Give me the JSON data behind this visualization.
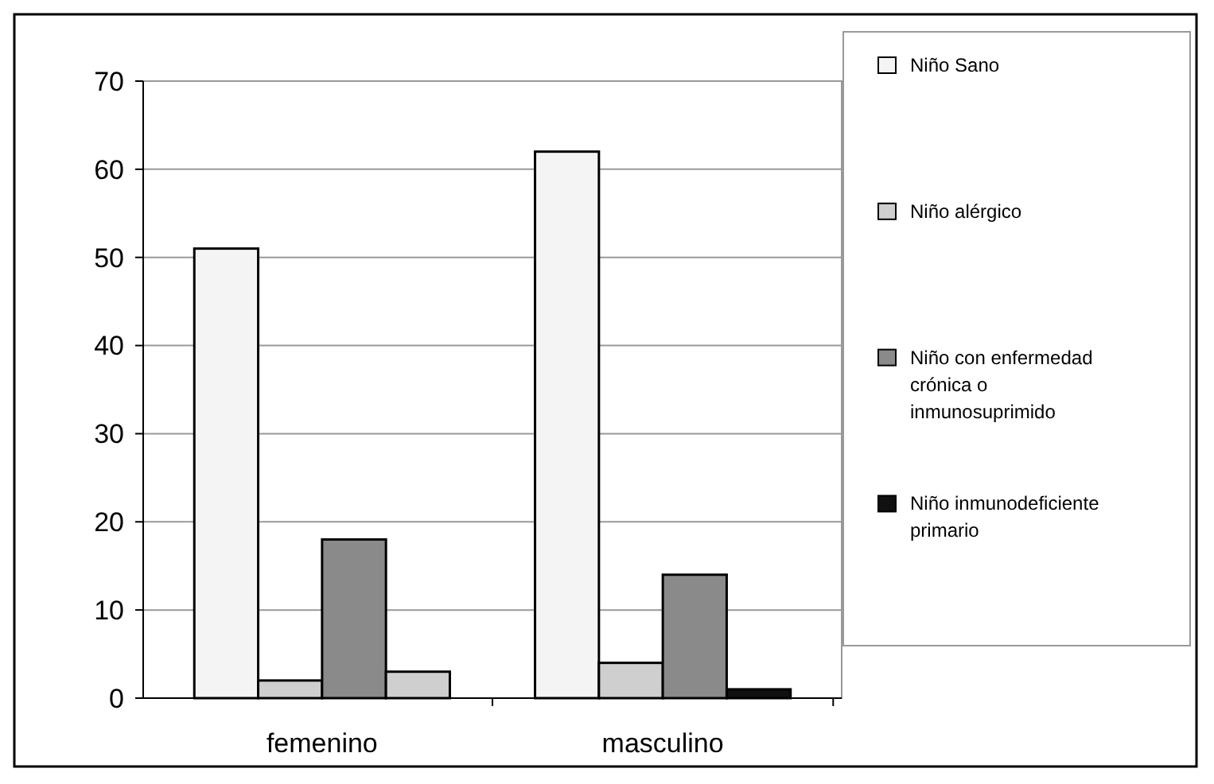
{
  "chart_data": {
    "type": "bar",
    "categories": [
      "femenino",
      "masculino"
    ],
    "series": [
      {
        "name": "Niño Sano",
        "color": "#f4f4f4",
        "values": [
          51,
          62
        ]
      },
      {
        "name": "Niño alérgico",
        "color": "#cfcfcf",
        "values": [
          2,
          4
        ]
      },
      {
        "name": "Niño con enfermedad crónica o inmunosuprimido",
        "color": "#8a8a8a",
        "values": [
          18,
          14
        ]
      },
      {
        "name": "Niño inmunodeficiente primario",
        "color": "#111111",
        "colors": [
          "#cfcfcf",
          "#111111"
        ],
        "values": [
          3,
          1
        ]
      }
    ],
    "ylim": [
      0,
      70
    ],
    "yticks": [
      0,
      10,
      20,
      30,
      40,
      50,
      60,
      70
    ],
    "grid": "y",
    "legend": "right"
  }
}
